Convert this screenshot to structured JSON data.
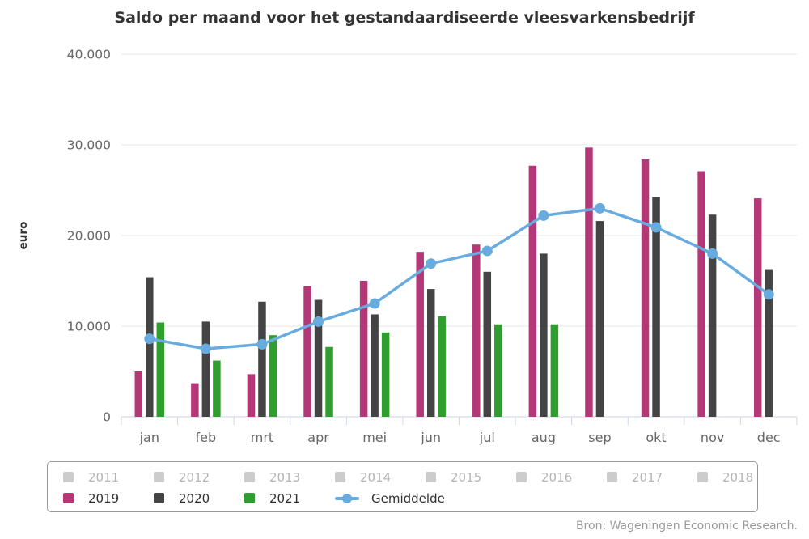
{
  "page": {
    "source": "Bron: Wageningen Economic Research."
  },
  "chart_data": {
    "type": "bar",
    "title": "Saldo per maand voor het gestandaardiseerde vleesvarkensbedrijf",
    "xlabel": "",
    "ylabel": "euro",
    "ylim": [
      0,
      40000
    ],
    "grid": true,
    "legend_position": "bottom",
    "ytick_values": [
      0,
      10000,
      20000,
      30000,
      40000
    ],
    "ytick_labels": [
      "0",
      "10.000",
      "20.000",
      "30.000",
      "40.000"
    ],
    "categories": [
      "jan",
      "feb",
      "mrt",
      "apr",
      "mei",
      "jun",
      "jul",
      "aug",
      "sep",
      "okt",
      "nov",
      "dec"
    ],
    "series": [
      {
        "name": "2019",
        "type": "bar",
        "color": "#b43878",
        "values": [
          5000,
          3700,
          4700,
          14400,
          15000,
          18200,
          19000,
          27700,
          29700,
          28400,
          27100,
          24100
        ]
      },
      {
        "name": "2020",
        "type": "bar",
        "color": "#444444",
        "values": [
          15400,
          10500,
          12700,
          12900,
          11300,
          14100,
          16000,
          18000,
          21600,
          24200,
          22300,
          16200
        ]
      },
      {
        "name": "2021",
        "type": "bar",
        "color": "#2e9e2e",
        "values": [
          10400,
          6200,
          9000,
          7700,
          9300,
          11100,
          10200,
          10200,
          null,
          null,
          null,
          null
        ]
      },
      {
        "name": "Gemiddelde",
        "type": "line",
        "color": "#68acdf",
        "values": [
          8600,
          7500,
          8000,
          10500,
          12500,
          16900,
          18300,
          22200,
          23000,
          20900,
          18000,
          13500
        ]
      }
    ],
    "inactive_legend_years": [
      "2011",
      "2012",
      "2013",
      "2014",
      "2015",
      "2016",
      "2017",
      "2018"
    ]
  },
  "colors": {
    "grid": "#e6e6e6",
    "axis_line": "#ccd6eb",
    "tick_label": "#666666",
    "axis_title": "#333333",
    "inactive_swatch": "#cccccc",
    "legend_border": "#999999",
    "source_text": "#999999"
  }
}
